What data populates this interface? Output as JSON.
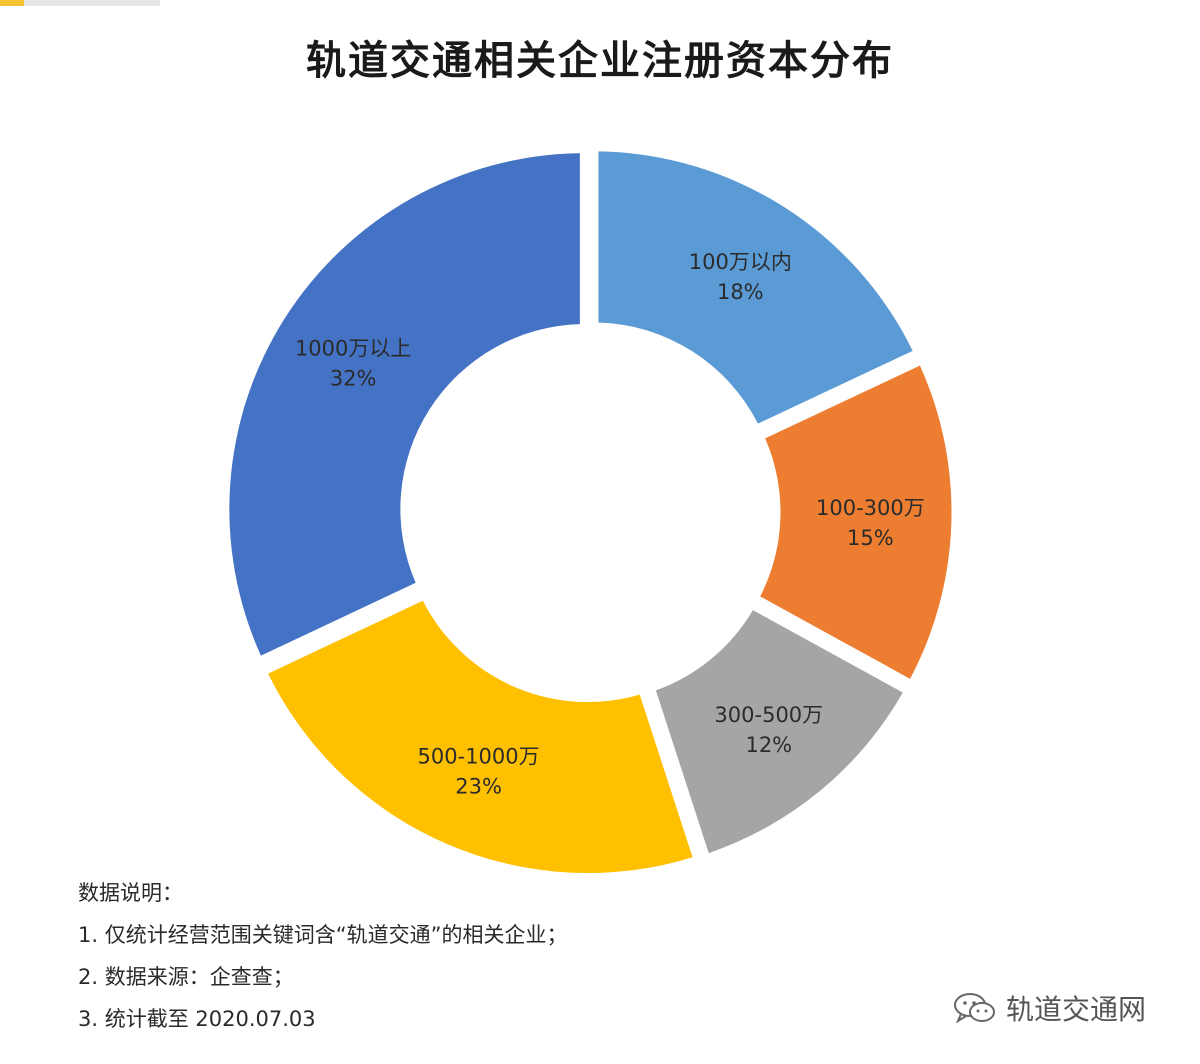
{
  "title": "轨道交通相关企业注册资本分布",
  "chart_data": {
    "type": "pie",
    "title": "轨道交通相关企业注册资本分布",
    "donut": true,
    "slices": [
      {
        "label": "100万以内",
        "value": 18,
        "value_label": "18%",
        "color": "#5b9bd5"
      },
      {
        "label": "100-300万",
        "value": 15,
        "value_label": "15%",
        "color": "#ed7d31"
      },
      {
        "label": "300-500万",
        "value": 12,
        "value_label": "12%",
        "color": "#a5a5a5"
      },
      {
        "label": "500-1000万",
        "value": 23,
        "value_label": "23%",
        "color": "#ffc000"
      },
      {
        "label": "1000万以上",
        "value": 32,
        "value_label": "32%",
        "color": "#4472c4"
      }
    ]
  },
  "notes": {
    "heading": "数据说明：",
    "items": [
      "1. 仅统计经营范围关键词含“轨道交通”的相关企业；",
      "2. 数据来源：企查查；",
      "3. 统计截至 2020.07.03"
    ]
  },
  "watermark": {
    "text": "轨道交通网",
    "icon": "wechat-icon"
  }
}
